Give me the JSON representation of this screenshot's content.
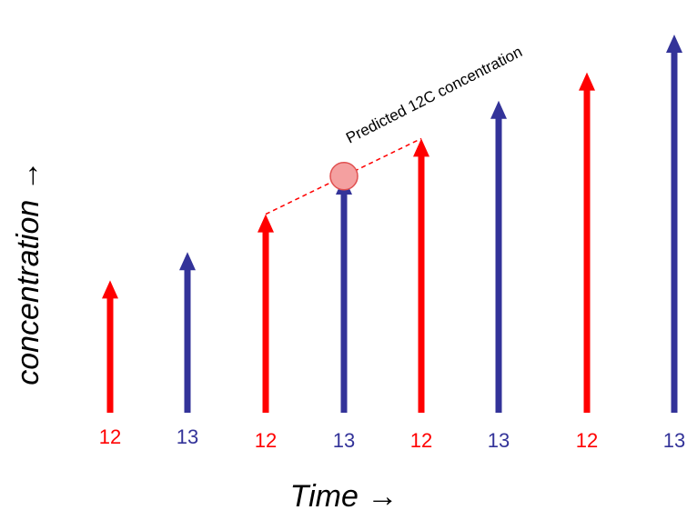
{
  "colors": {
    "series_12": "#ff0000",
    "series_13": "#333399",
    "marker_fill": "#f4a0a0",
    "marker_stroke": "#e05050",
    "dashed_line": "#ff0000"
  },
  "x_axis_title": "Time →",
  "y_axis_title": "concentration →",
  "annotation": {
    "text": "Predicted 12C concentration"
  },
  "chart_data": {
    "type": "bar",
    "categories": [
      "12",
      "13",
      "12",
      "13",
      "12",
      "13",
      "12",
      "13"
    ],
    "values": [
      1.4,
      1.7,
      2.1,
      2.5,
      2.9,
      3.3,
      3.6,
      4.0
    ],
    "title": "",
    "xlabel": "Time →",
    "ylabel": "concentration →",
    "ylim": [
      0,
      4.0
    ],
    "grid": false,
    "annotation": "Predicted 12C concentration"
  }
}
